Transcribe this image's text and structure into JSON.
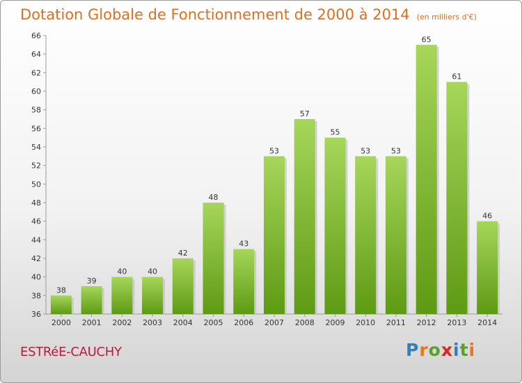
{
  "title": "Dotation Globale de Fonctionnement de 2000 à 2014",
  "subtitle": "(en milliers d'€)",
  "commune": "ESTRéE-CAUCHY",
  "logo": {
    "letters": [
      "P",
      "r",
      "o",
      "x",
      "i",
      "t",
      "i"
    ],
    "colors": [
      "#2f7fc4",
      "#e8761c",
      "#5aa02c",
      "#e2231a",
      "#2f7fc4",
      "#5aa02c",
      "#e8761c"
    ]
  },
  "colors": {
    "bar_light": "#9ed14f",
    "bar_dark": "#5e9a14",
    "title": "#e06f1d",
    "commune": "#c0183c"
  },
  "chart_data": {
    "type": "bar",
    "categories": [
      "2000",
      "2001",
      "2002",
      "2003",
      "2004",
      "2005",
      "2006",
      "2007",
      "2008",
      "2009",
      "2010",
      "2011",
      "2012",
      "2013",
      "2014"
    ],
    "values": [
      38,
      39,
      40,
      40,
      42,
      48,
      43,
      53,
      57,
      55,
      53,
      53,
      65,
      61,
      46
    ],
    "title": "Dotation Globale de Fonctionnement de 2000 à 2014",
    "ylim": [
      36,
      66
    ],
    "yticks": [
      36,
      38,
      40,
      42,
      44,
      46,
      48,
      50,
      52,
      54,
      56,
      58,
      60,
      62,
      64,
      66
    ],
    "grid": false,
    "legend": "none"
  }
}
